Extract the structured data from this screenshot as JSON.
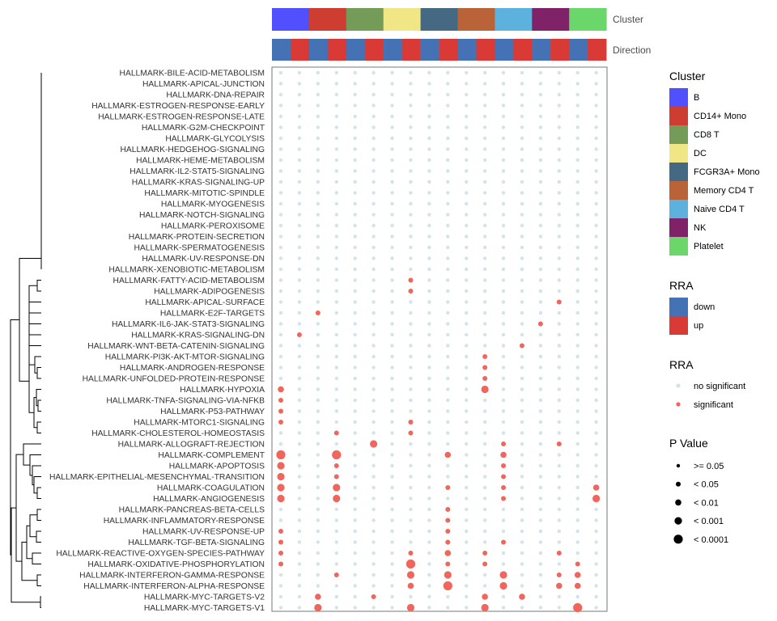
{
  "chart_data": {
    "type": "dotplot",
    "annotation_labels": {
      "cluster": "Cluster",
      "direction": "Direction"
    },
    "clusters": [
      {
        "name": "B",
        "color": "#5050FF"
      },
      {
        "name": "CD14+ Mono",
        "color": "#CE3D32"
      },
      {
        "name": "CD8 T",
        "color": "#749B58"
      },
      {
        "name": "DC",
        "color": "#F0E685"
      },
      {
        "name": "FCGR3A+ Mono",
        "color": "#466983"
      },
      {
        "name": "Memory CD4 T",
        "color": "#BA6338"
      },
      {
        "name": "Naive CD4 T",
        "color": "#5DB1DD"
      },
      {
        "name": "NK",
        "color": "#802268"
      },
      {
        "name": "Platelet",
        "color": "#6BD76B"
      }
    ],
    "directions": [
      {
        "name": "down",
        "color": "#4472B5"
      },
      {
        "name": "up",
        "color": "#D93A35"
      }
    ],
    "significance_colors": {
      "no significant": "#D3E3E6",
      "significant": "#F0665C"
    },
    "rows": [
      "HALLMARK-BILE-ACID-METABOLISM",
      "HALLMARK-APICAL-JUNCTION",
      "HALLMARK-DNA-REPAIR",
      "HALLMARK-ESTROGEN-RESPONSE-EARLY",
      "HALLMARK-ESTROGEN-RESPONSE-LATE",
      "HALLMARK-G2M-CHECKPOINT",
      "HALLMARK-GLYCOLYSIS",
      "HALLMARK-HEDGEHOG-SIGNALING",
      "HALLMARK-HEME-METABOLISM",
      "HALLMARK-IL2-STAT5-SIGNALING",
      "HALLMARK-KRAS-SIGNALING-UP",
      "HALLMARK-MITOTIC-SPINDLE",
      "HALLMARK-MYOGENESIS",
      "HALLMARK-NOTCH-SIGNALING",
      "HALLMARK-PEROXISOME",
      "HALLMARK-PROTEIN-SECRETION",
      "HALLMARK-SPERMATOGENESIS",
      "HALLMARK-UV-RESPONSE-DN",
      "HALLMARK-XENOBIOTIC-METABOLISM",
      "HALLMARK-FATTY-ACID-METABOLISM",
      "HALLMARK-ADIPOGENESIS",
      "HALLMARK-APICAL-SURFACE",
      "HALLMARK-E2F-TARGETS",
      "HALLMARK-IL6-JAK-STAT3-SIGNALING",
      "HALLMARK-KRAS-SIGNALING-DN",
      "HALLMARK-WNT-BETA-CATENIN-SIGNALING",
      "HALLMARK-PI3K-AKT-MTOR-SIGNALING",
      "HALLMARK-ANDROGEN-RESPONSE",
      "HALLMARK-UNFOLDED-PROTEIN-RESPONSE",
      "HALLMARK-HYPOXIA",
      "HALLMARK-TNFA-SIGNALING-VIA-NFKB",
      "HALLMARK-P53-PATHWAY",
      "HALLMARK-MTORC1-SIGNALING",
      "HALLMARK-CHOLESTEROL-HOMEOSTASIS",
      "HALLMARK-ALLOGRAFT-REJECTION",
      "HALLMARK-COMPLEMENT",
      "HALLMARK-APOPTOSIS",
      "HALLMARK-EPITHELIAL-MESENCHYMAL-TRANSITION",
      "HALLMARK-COAGULATION",
      "HALLMARK-ANGIOGENESIS",
      "HALLMARK-PANCREAS-BETA-CELLS",
      "HALLMARK-INFLAMMATORY-RESPONSE",
      "HALLMARK-UV-RESPONSE-UP",
      "HALLMARK-TGF-BETA-SIGNALING",
      "HALLMARK-REACTIVE-OXYGEN-SPECIES-PATHWAY",
      "HALLMARK-OXIDATIVE-PHOSPHORYLATION",
      "HALLMARK-INTERFERON-GAMMA-RESPONSE",
      "HALLMARK-INTERFERON-ALPHA-RESPONSE",
      "HALLMARK-MYC-TARGETS-V2",
      "HALLMARK-MYC-TARGETS-V1"
    ],
    "significant_points": [
      {
        "row": 19,
        "col": 7,
        "p": 1
      },
      {
        "row": 20,
        "col": 7,
        "p": 1
      },
      {
        "row": 21,
        "col": 15,
        "p": 1
      },
      {
        "row": 22,
        "col": 2,
        "p": 1
      },
      {
        "row": 23,
        "col": 14,
        "p": 1
      },
      {
        "row": 24,
        "col": 1,
        "p": 1
      },
      {
        "row": 25,
        "col": 13,
        "p": 1
      },
      {
        "row": 26,
        "col": 11,
        "p": 1
      },
      {
        "row": 27,
        "col": 11,
        "p": 1
      },
      {
        "row": 28,
        "col": 11,
        "p": 1
      },
      {
        "row": 29,
        "col": 0,
        "p": 2
      },
      {
        "row": 29,
        "col": 11,
        "p": 3
      },
      {
        "row": 30,
        "col": 0,
        "p": 1
      },
      {
        "row": 31,
        "col": 0,
        "p": 1
      },
      {
        "row": 32,
        "col": 0,
        "p": 1
      },
      {
        "row": 32,
        "col": 7,
        "p": 1
      },
      {
        "row": 33,
        "col": 3,
        "p": 1
      },
      {
        "row": 33,
        "col": 7,
        "p": 1
      },
      {
        "row": 34,
        "col": 5,
        "p": 3
      },
      {
        "row": 34,
        "col": 12,
        "p": 1
      },
      {
        "row": 34,
        "col": 15,
        "p": 1
      },
      {
        "row": 35,
        "col": 0,
        "p": 4
      },
      {
        "row": 35,
        "col": 3,
        "p": 4
      },
      {
        "row": 35,
        "col": 9,
        "p": 2
      },
      {
        "row": 35,
        "col": 12,
        "p": 2
      },
      {
        "row": 36,
        "col": 0,
        "p": 3
      },
      {
        "row": 36,
        "col": 3,
        "p": 1
      },
      {
        "row": 36,
        "col": 12,
        "p": 1
      },
      {
        "row": 37,
        "col": 0,
        "p": 3
      },
      {
        "row": 37,
        "col": 3,
        "p": 1
      },
      {
        "row": 37,
        "col": 12,
        "p": 1
      },
      {
        "row": 38,
        "col": 0,
        "p": 3
      },
      {
        "row": 38,
        "col": 3,
        "p": 3
      },
      {
        "row": 38,
        "col": 9,
        "p": 1
      },
      {
        "row": 38,
        "col": 12,
        "p": 1
      },
      {
        "row": 38,
        "col": 17,
        "p": 2
      },
      {
        "row": 39,
        "col": 0,
        "p": 3
      },
      {
        "row": 39,
        "col": 3,
        "p": 3
      },
      {
        "row": 39,
        "col": 12,
        "p": 1
      },
      {
        "row": 39,
        "col": 17,
        "p": 3
      },
      {
        "row": 40,
        "col": 9,
        "p": 1
      },
      {
        "row": 41,
        "col": 9,
        "p": 1
      },
      {
        "row": 42,
        "col": 0,
        "p": 1
      },
      {
        "row": 42,
        "col": 9,
        "p": 1
      },
      {
        "row": 43,
        "col": 0,
        "p": 1
      },
      {
        "row": 43,
        "col": 9,
        "p": 1
      },
      {
        "row": 43,
        "col": 12,
        "p": 1
      },
      {
        "row": 44,
        "col": 0,
        "p": 1
      },
      {
        "row": 44,
        "col": 7,
        "p": 1
      },
      {
        "row": 44,
        "col": 9,
        "p": 2
      },
      {
        "row": 44,
        "col": 11,
        "p": 1
      },
      {
        "row": 44,
        "col": 15,
        "p": 1
      },
      {
        "row": 45,
        "col": 0,
        "p": 1
      },
      {
        "row": 45,
        "col": 7,
        "p": 4
      },
      {
        "row": 45,
        "col": 9,
        "p": 1
      },
      {
        "row": 45,
        "col": 11,
        "p": 1
      },
      {
        "row": 45,
        "col": 16,
        "p": 1
      },
      {
        "row": 46,
        "col": 3,
        "p": 1
      },
      {
        "row": 46,
        "col": 7,
        "p": 3
      },
      {
        "row": 46,
        "col": 9,
        "p": 3
      },
      {
        "row": 46,
        "col": 12,
        "p": 3
      },
      {
        "row": 46,
        "col": 15,
        "p": 1
      },
      {
        "row": 46,
        "col": 16,
        "p": 2
      },
      {
        "row": 47,
        "col": 7,
        "p": 2
      },
      {
        "row": 47,
        "col": 9,
        "p": 4
      },
      {
        "row": 47,
        "col": 12,
        "p": 3
      },
      {
        "row": 47,
        "col": 15,
        "p": 2
      },
      {
        "row": 47,
        "col": 16,
        "p": 2
      },
      {
        "row": 48,
        "col": 2,
        "p": 2
      },
      {
        "row": 48,
        "col": 5,
        "p": 1
      },
      {
        "row": 48,
        "col": 11,
        "p": 2
      },
      {
        "row": 48,
        "col": 13,
        "p": 2
      },
      {
        "row": 49,
        "col": 2,
        "p": 3
      },
      {
        "row": 49,
        "col": 7,
        "p": 3
      },
      {
        "row": 49,
        "col": 11,
        "p": 3
      },
      {
        "row": 49,
        "col": 16,
        "p": 4
      }
    ],
    "legends": {
      "cluster_title": "Cluster",
      "rra_title": "RRA",
      "rra_items": [
        "down",
        "up"
      ],
      "rra2_title": "RRA",
      "rra2_items": [
        "no significant",
        "significant"
      ],
      "pvalue_title": "P Value",
      "pvalue_items": [
        ">= 0.05",
        "< 0.05",
        "< 0.01",
        "< 0.001",
        "< 0.0001"
      ]
    }
  }
}
